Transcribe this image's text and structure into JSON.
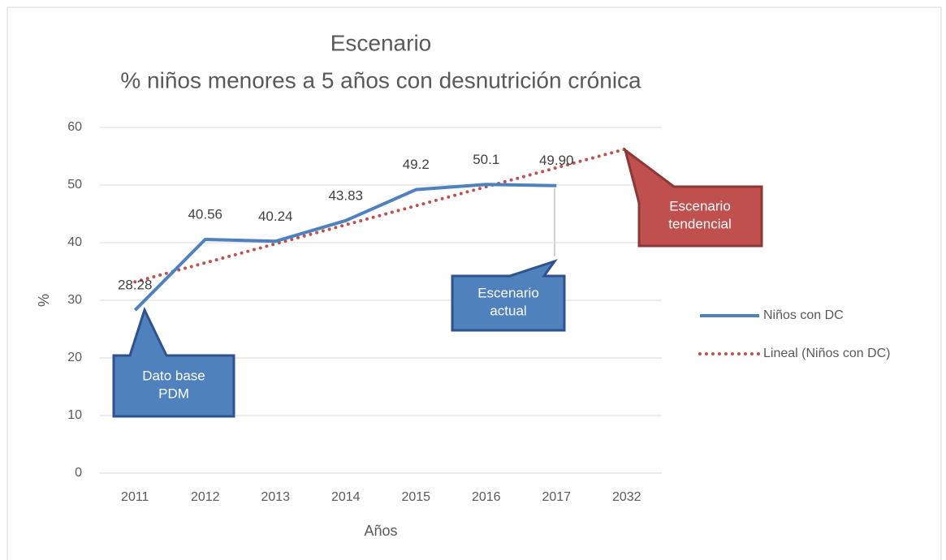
{
  "chart_data": {
    "type": "line",
    "title": [
      "Escenario",
      "% niños menores a 5 años con desnutrición crónica"
    ],
    "x_label": "Años",
    "y_label": "%",
    "categories": [
      "2011",
      "2012",
      "2013",
      "2014",
      "2015",
      "2016",
      "2017",
      "2032"
    ],
    "series": [
      {
        "name": "Niños con DC",
        "color": "#4f81bd",
        "style": "solid",
        "values": [
          28.28,
          40.56,
          40.24,
          43.83,
          49.2,
          50.1,
          49.9,
          null
        ],
        "value_labels": [
          "28.28",
          "40.56",
          "40.24",
          "43.83",
          "49.2",
          "50.1",
          "49.90",
          null
        ]
      },
      {
        "name": "Lineal (Niños con DC)",
        "color": "#c0504d",
        "style": "dotted",
        "values": [
          33.2,
          36.5,
          39.8,
          43.1,
          46.4,
          49.7,
          53.0,
          56.3
        ]
      }
    ],
    "ylim": [
      0,
      60
    ],
    "yticks": [
      0,
      10,
      20,
      30,
      40,
      50,
      60
    ],
    "grid": true,
    "legend": "right",
    "annotations": [
      {
        "lines": [
          "Dato base",
          "PDM"
        ],
        "color": "#4f81bd"
      },
      {
        "lines": [
          "Escenario",
          "actual"
        ],
        "color": "#4f81bd"
      },
      {
        "lines": [
          "Escenario",
          "tendencial"
        ],
        "color": "#c0504d"
      }
    ]
  }
}
